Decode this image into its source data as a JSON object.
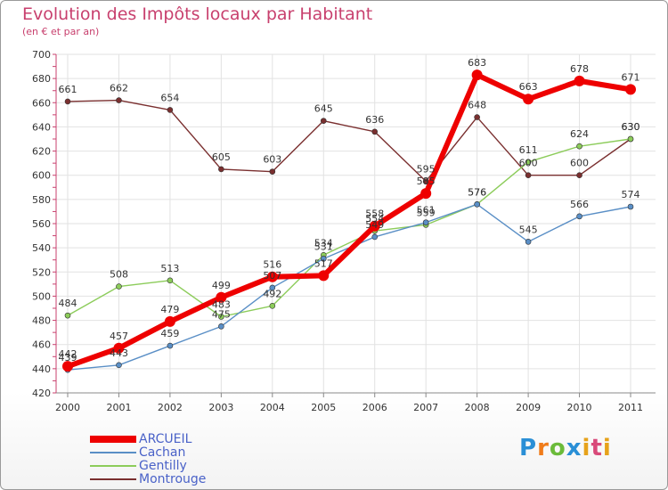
{
  "title": "Evolution des Impôts locaux par Habitant",
  "subtitle": "(en € et par an)",
  "logo_text": "Proxiti",
  "chart_data": {
    "type": "line",
    "title": "Evolution des Impôts locaux par Habitant",
    "subtitle": "(en € et par an)",
    "xlabel": "",
    "ylabel": "",
    "categories": [
      "2000",
      "2001",
      "2002",
      "2003",
      "2004",
      "2005",
      "2006",
      "2007",
      "2008",
      "2009",
      "2010",
      "2011"
    ],
    "ylim": [
      420,
      700
    ],
    "yticks": [
      420,
      440,
      460,
      480,
      500,
      520,
      540,
      560,
      580,
      600,
      620,
      640,
      660,
      680,
      700
    ],
    "grid": true,
    "legend_position": "bottom-left",
    "series": [
      {
        "name": "ARCUEIL",
        "color": "#ee0000",
        "width": 6,
        "values": [
          442,
          457,
          479,
          499,
          516,
          517,
          558,
          585,
          683,
          663,
          678,
          671
        ]
      },
      {
        "name": "Cachan",
        "color": "#5a8fc6",
        "width": 1.4,
        "values": [
          439,
          443,
          459,
          475,
          507,
          531,
          549,
          561,
          576,
          545,
          566,
          574
        ]
      },
      {
        "name": "Gentilly",
        "color": "#8ccc5a",
        "width": 1.4,
        "values": [
          484,
          508,
          513,
          483,
          492,
          534,
          554,
          559,
          576,
          611,
          624,
          630
        ]
      },
      {
        "name": "Montrouge",
        "color": "#7a2f2f",
        "width": 1.4,
        "values": [
          661,
          662,
          654,
          605,
          603,
          645,
          636,
          595,
          648,
          600,
          600,
          630
        ]
      }
    ]
  }
}
